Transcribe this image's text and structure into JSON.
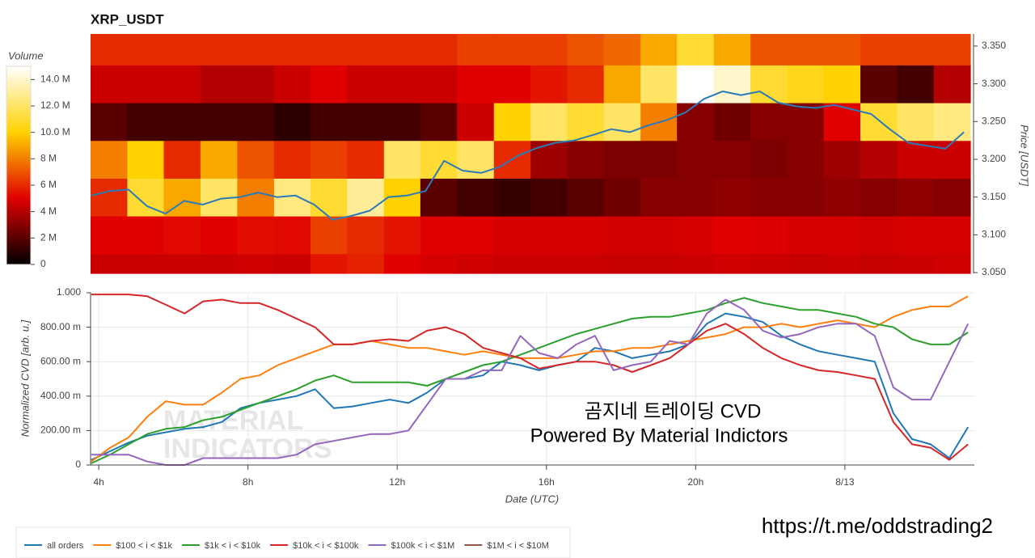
{
  "chart_data": [
    {
      "type": "heatmap",
      "title": "XRP_USDT",
      "colorbar_title": "Volume",
      "ylabel": "Price [USDT]",
      "xlim": [
        3.78,
        27.47
      ],
      "ylim": [
        3.049,
        3.366
      ],
      "yticks": [
        {
          "value": 3.05,
          "label": "3.050"
        },
        {
          "value": 3.1,
          "label": "3.100"
        },
        {
          "value": 3.15,
          "label": "3.150"
        },
        {
          "value": 3.2,
          "label": "3.200"
        },
        {
          "value": 3.25,
          "label": "3.250"
        },
        {
          "value": 3.3,
          "label": "3.300"
        },
        {
          "value": 3.35,
          "label": "3.350"
        }
      ],
      "x_edges": [
        3.78,
        4.77,
        5.75,
        6.74,
        7.73,
        8.72,
        9.7,
        10.69,
        11.68,
        12.66,
        13.65,
        14.64,
        15.63,
        16.61,
        17.6,
        18.59,
        19.57,
        20.56,
        21.55,
        22.54,
        23.52,
        24.51,
        25.5,
        26.48,
        27.47
      ],
      "y_edges": [
        3.049,
        3.075,
        3.125,
        3.175,
        3.225,
        3.275,
        3.325,
        3.366
      ],
      "zlim": [
        0,
        15000000
      ],
      "zticks": [
        0,
        {
          "value": 2000000,
          "label": "2 M"
        },
        {
          "value": 4000000,
          "label": "4 M"
        },
        {
          "value": 6000000,
          "label": "6 M"
        },
        {
          "value": 8000000,
          "label": "8 M"
        },
        {
          "value": 10000000,
          "label": "10.0 M"
        },
        {
          "value": 12000000,
          "label": "12.0 M"
        },
        {
          "value": 14000000,
          "label": "14.0 M"
        }
      ],
      "colorscale": [
        "#000000",
        "#e00000",
        "#ffd200",
        "#ffffff"
      ],
      "z": [
        [
          4500000,
          4500000,
          4500000,
          4500000,
          4600000,
          4500000,
          5500000,
          5800000,
          5000000,
          4800000,
          4600000,
          4500000,
          4500000,
          4500000,
          4400000,
          4400000,
          4500000,
          4600000,
          4500000,
          4400000,
          4500000,
          4400000,
          4500000,
          4600000
        ],
        [
          5000000,
          5000000,
          5200000,
          5000000,
          5300000,
          5200000,
          6500000,
          6000000,
          5500000,
          5000000,
          5000000,
          4800000,
          4800000,
          4800000,
          4700000,
          4700000,
          4800000,
          5000000,
          4900000,
          4800000,
          4800000,
          4700000,
          4800000,
          4800000
        ],
        [
          6000000,
          11000000,
          9000000,
          12000000,
          8000000,
          12500000,
          11000000,
          13000000,
          10000000,
          2000000,
          1500000,
          1200000,
          1500000,
          2000000,
          2500000,
          3000000,
          3000000,
          3200000,
          3000000,
          3000000,
          3200000,
          3000000,
          3200000,
          3000000
        ],
        [
          8000000,
          10000000,
          6000000,
          9000000,
          7000000,
          6000000,
          6500000,
          6000000,
          12000000,
          11000000,
          12000000,
          6000000,
          3500000,
          3000000,
          2800000,
          2800000,
          3000000,
          3000000,
          2800000,
          3000000,
          3500000,
          4000000,
          4500000,
          4500000
        ],
        [
          2000000,
          1500000,
          1500000,
          1500000,
          1500000,
          1000000,
          1500000,
          1500000,
          1500000,
          2000000,
          4500000,
          10000000,
          12000000,
          11000000,
          12000000,
          8000000,
          3000000,
          2500000,
          3000000,
          3000000,
          5000000,
          11000000,
          12000000,
          12500000
        ],
        [
          4500000,
          4500000,
          4500000,
          4000000,
          4000000,
          4500000,
          5000000,
          4500000,
          4500000,
          4500000,
          5000000,
          5000000,
          5500000,
          6000000,
          9000000,
          12000000,
          15000000,
          14000000,
          11000000,
          10500000,
          10000000,
          2000000,
          1500000,
          4000000
        ],
        [
          6000000,
          6000000,
          6000000,
          6000000,
          6000000,
          6000000,
          6000000,
          6000000,
          6000000,
          6000000,
          6500000,
          6500000,
          6500000,
          7000000,
          7500000,
          9000000,
          11000000,
          9000000,
          7000000,
          7000000,
          7000000,
          6500000,
          6500000,
          6500000
        ]
      ],
      "price_line": {
        "color": "#2b7bb9",
        "x": [
          3.8,
          4.3,
          4.8,
          5.3,
          5.8,
          6.3,
          6.8,
          7.3,
          7.8,
          8.3,
          8.8,
          9.3,
          9.8,
          10.3,
          10.8,
          11.3,
          11.8,
          12.3,
          12.8,
          13.3,
          13.8,
          14.3,
          14.8,
          15.3,
          15.8,
          16.3,
          16.8,
          17.3,
          17.8,
          18.3,
          18.8,
          19.3,
          19.8,
          20.3,
          20.8,
          21.3,
          21.8,
          22.3,
          22.8,
          23.3,
          23.8,
          24.3,
          24.8,
          25.3,
          25.8,
          26.3,
          26.8,
          27.3
        ],
        "values": [
          3.152,
          3.158,
          3.16,
          3.138,
          3.128,
          3.145,
          3.14,
          3.148,
          3.15,
          3.156,
          3.15,
          3.152,
          3.14,
          3.12,
          3.125,
          3.132,
          3.15,
          3.152,
          3.158,
          3.198,
          3.185,
          3.182,
          3.19,
          3.205,
          3.215,
          3.222,
          3.225,
          3.232,
          3.24,
          3.236,
          3.245,
          3.252,
          3.262,
          3.28,
          3.29,
          3.285,
          3.29,
          3.275,
          3.27,
          3.268,
          3.272,
          3.266,
          3.26,
          3.24,
          3.222,
          3.218,
          3.214,
          3.236
        ]
      }
    },
    {
      "type": "line",
      "ylabel": "Normalized CVD [arb. u.]",
      "xlabel": "Date (UTC)",
      "grid": true,
      "xlim": [
        3.78,
        27.47
      ],
      "xticks": [
        {
          "value": 4,
          "label": "4h"
        },
        {
          "value": 8,
          "label": "8h"
        },
        {
          "value": 12,
          "label": "12h"
        },
        {
          "value": 16,
          "label": "16h"
        },
        {
          "value": 20,
          "label": "20h"
        },
        {
          "value": 24,
          "label": "8/13"
        }
      ],
      "ylim": [
        0,
        1
      ],
      "yticks": [
        0,
        {
          "value": 0.2,
          "label": "200.00 m"
        },
        {
          "value": 0.4,
          "label": "400.00 m"
        },
        {
          "value": 0.6,
          "label": "600.00 m"
        },
        {
          "value": 0.8,
          "label": "800.00 m"
        },
        {
          "value": 1,
          "label": "1.000"
        }
      ],
      "x": [
        3.8,
        4.3,
        4.8,
        5.3,
        5.8,
        6.3,
        6.8,
        7.3,
        7.8,
        8.3,
        8.8,
        9.3,
        9.8,
        10.3,
        10.8,
        11.3,
        11.8,
        12.3,
        12.8,
        13.3,
        13.8,
        14.3,
        14.8,
        15.3,
        15.8,
        16.3,
        16.8,
        17.3,
        17.8,
        18.3,
        18.8,
        19.3,
        19.8,
        20.3,
        20.8,
        21.3,
        21.8,
        22.3,
        22.8,
        23.3,
        23.8,
        24.3,
        24.8,
        25.3,
        25.8,
        26.3,
        26.8,
        27.3
      ],
      "series": [
        {
          "name": "all orders",
          "color": "#1f77b4",
          "values": [
            0.03,
            0.08,
            0.13,
            0.17,
            0.19,
            0.21,
            0.22,
            0.25,
            0.33,
            0.36,
            0.38,
            0.4,
            0.44,
            0.33,
            0.34,
            0.36,
            0.38,
            0.36,
            0.42,
            0.5,
            0.5,
            0.52,
            0.6,
            0.58,
            0.55,
            0.58,
            0.6,
            0.68,
            0.66,
            0.62,
            0.64,
            0.66,
            0.7,
            0.82,
            0.88,
            0.86,
            0.83,
            0.75,
            0.7,
            0.66,
            0.64,
            0.62,
            0.6,
            0.3,
            0.15,
            0.12,
            0.04,
            0.22
          ]
        },
        {
          "name": "$100 < i < $1k",
          "color": "#ff7f0e",
          "values": [
            0.02,
            0.1,
            0.16,
            0.28,
            0.37,
            0.35,
            0.35,
            0.42,
            0.5,
            0.52,
            0.58,
            0.62,
            0.66,
            0.7,
            0.7,
            0.72,
            0.7,
            0.68,
            0.68,
            0.66,
            0.64,
            0.66,
            0.64,
            0.62,
            0.62,
            0.62,
            0.64,
            0.66,
            0.66,
            0.68,
            0.68,
            0.7,
            0.72,
            0.74,
            0.76,
            0.8,
            0.8,
            0.82,
            0.8,
            0.82,
            0.84,
            0.82,
            0.8,
            0.86,
            0.9,
            0.92,
            0.92,
            0.98
          ]
        },
        {
          "name": "$1k < i < $10k",
          "color": "#2ca02c",
          "values": [
            0.01,
            0.06,
            0.12,
            0.18,
            0.21,
            0.22,
            0.26,
            0.28,
            0.32,
            0.36,
            0.4,
            0.44,
            0.49,
            0.52,
            0.48,
            0.48,
            0.48,
            0.48,
            0.46,
            0.5,
            0.54,
            0.58,
            0.6,
            0.64,
            0.68,
            0.72,
            0.76,
            0.79,
            0.82,
            0.85,
            0.86,
            0.86,
            0.88,
            0.9,
            0.94,
            0.97,
            0.94,
            0.92,
            0.9,
            0.9,
            0.88,
            0.86,
            0.82,
            0.8,
            0.73,
            0.7,
            0.7,
            0.77
          ]
        },
        {
          "name": "$10k < i < $100k",
          "color": "#d62728",
          "values": [
            0.99,
            0.99,
            0.99,
            0.98,
            0.93,
            0.88,
            0.95,
            0.96,
            0.94,
            0.94,
            0.9,
            0.85,
            0.8,
            0.7,
            0.7,
            0.72,
            0.73,
            0.72,
            0.78,
            0.8,
            0.76,
            0.68,
            0.65,
            0.62,
            0.56,
            0.58,
            0.6,
            0.6,
            0.58,
            0.54,
            0.58,
            0.62,
            0.7,
            0.78,
            0.82,
            0.76,
            0.68,
            0.62,
            0.58,
            0.55,
            0.54,
            0.52,
            0.5,
            0.25,
            0.12,
            0.1,
            0.03,
            0.12
          ]
        },
        {
          "name": "$100k < i < $1M",
          "color": "#9467bd",
          "values": [
            0.06,
            0.06,
            0.06,
            0.02,
            0.0,
            0.0,
            0.04,
            0.04,
            0.04,
            0.04,
            0.04,
            0.06,
            0.12,
            0.14,
            0.16,
            0.18,
            0.18,
            0.2,
            0.35,
            0.5,
            0.5,
            0.55,
            0.55,
            0.75,
            0.65,
            0.62,
            0.7,
            0.75,
            0.55,
            0.58,
            0.6,
            0.72,
            0.7,
            0.88,
            0.96,
            0.9,
            0.78,
            0.74,
            0.76,
            0.8,
            0.82,
            0.82,
            0.75,
            0.45,
            0.38,
            0.38,
            0.6,
            0.82
          ]
        },
        {
          "name": "$1M < i < $10M",
          "color": "#8c564b",
          "values": [
            null,
            null,
            null,
            null,
            null,
            null,
            null,
            null,
            null,
            null,
            null,
            null,
            null,
            null,
            null,
            null,
            null,
            null,
            null,
            null,
            null,
            null,
            null,
            null,
            null,
            null,
            null,
            null,
            null,
            null,
            null,
            null,
            null,
            null,
            null,
            null,
            null,
            null,
            null,
            null,
            null,
            null,
            null,
            null,
            null,
            null,
            null,
            null
          ]
        }
      ]
    }
  ],
  "watermark": [
    "MATERIAL",
    "INDICATORS"
  ],
  "annotations": [
    "곰지네 트레이딩 CVD",
    "Powered By Material Indictors",
    "https://t.me/oddstrading2"
  ]
}
